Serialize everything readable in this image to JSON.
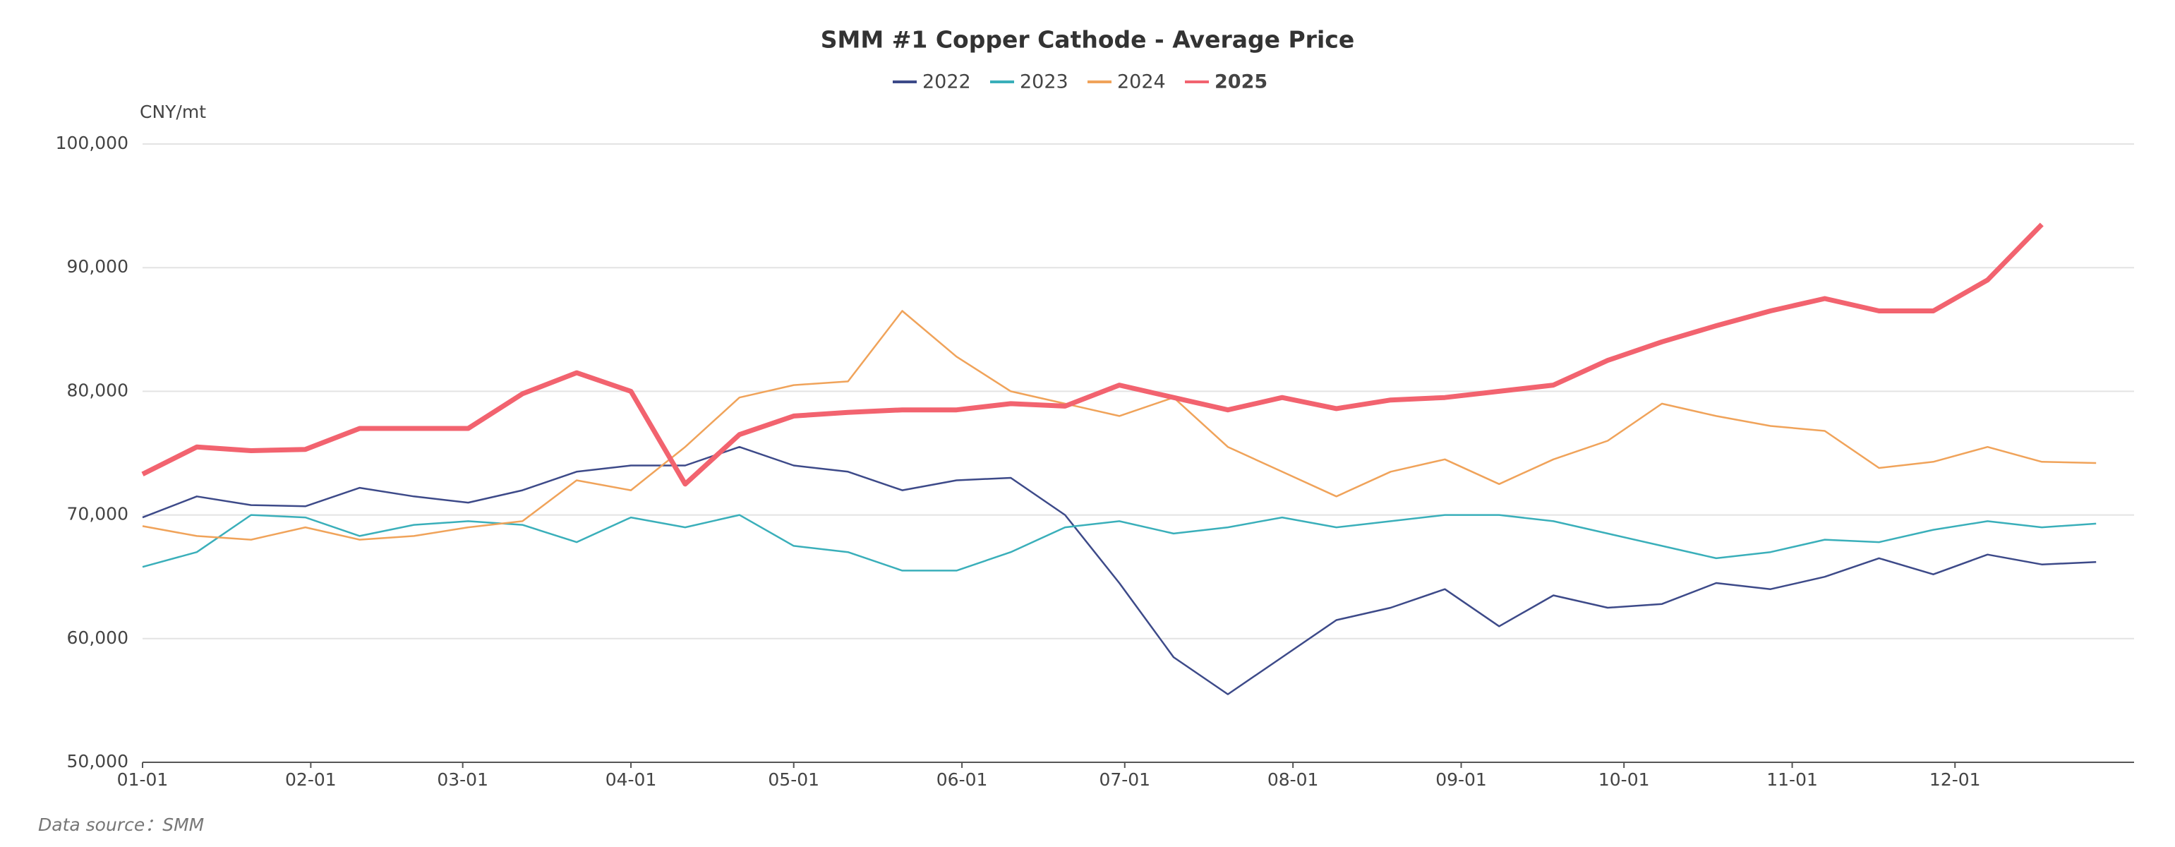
{
  "chart_data": {
    "type": "line",
    "title": "SMM #1 Copper Cathode - Average Price",
    "y_unit": "CNY/mt",
    "source": "Data source：SMM",
    "x": [
      1,
      11,
      21,
      31,
      41,
      51,
      61,
      71,
      81,
      91,
      101,
      111,
      121,
      131,
      141,
      151,
      161,
      171,
      181,
      191,
      201,
      211,
      221,
      231,
      241,
      251,
      261,
      271,
      281,
      291,
      301,
      311,
      321,
      331,
      341,
      351,
      361
    ],
    "xlim": [
      1,
      368
    ],
    "xticks": [
      {
        "value": 1,
        "label": "01-01"
      },
      {
        "value": 32,
        "label": "02-01"
      },
      {
        "value": 60,
        "label": "03-01"
      },
      {
        "value": 91,
        "label": "04-01"
      },
      {
        "value": 121,
        "label": "05-01"
      },
      {
        "value": 152,
        "label": "06-01"
      },
      {
        "value": 182,
        "label": "07-01"
      },
      {
        "value": 213,
        "label": "08-01"
      },
      {
        "value": 244,
        "label": "09-01"
      },
      {
        "value": 274,
        "label": "10-01"
      },
      {
        "value": 305,
        "label": "11-01"
      },
      {
        "value": 335,
        "label": "12-01"
      }
    ],
    "ylim": [
      50000,
      100000
    ],
    "yticks": [
      {
        "value": 50000,
        "label": "50,000"
      },
      {
        "value": 60000,
        "label": "60,000"
      },
      {
        "value": 70000,
        "label": "70,000"
      },
      {
        "value": 80000,
        "label": "80,000"
      },
      {
        "value": 90000,
        "label": "90,000"
      },
      {
        "value": 100000,
        "label": "100,000"
      }
    ],
    "grid": true,
    "series": [
      {
        "name": "2022",
        "color": "#3d4a89",
        "width": 2.5,
        "values": [
          69800,
          71500,
          70800,
          70700,
          72200,
          71500,
          71000,
          72000,
          73500,
          74000,
          74000,
          75500,
          74000,
          73500,
          72000,
          72800,
          73000,
          70000,
          64500,
          58500,
          55500,
          58500,
          61500,
          62500,
          64000,
          61000,
          63500,
          62500,
          62800,
          64500,
          64000,
          65000,
          66500,
          65200,
          66800,
          66000,
          66200
        ]
      },
      {
        "name": "2023",
        "color": "#3aafba",
        "width": 2.5,
        "values": [
          65800,
          67000,
          70000,
          69800,
          68300,
          69200,
          69500,
          69200,
          67800,
          69800,
          69000,
          70000,
          67500,
          67000,
          65500,
          65500,
          67000,
          69000,
          69500,
          68500,
          69000,
          69800,
          69000,
          69500,
          70000,
          70000,
          69500,
          68500,
          67500,
          66500,
          67000,
          68000,
          67800,
          68800,
          69500,
          69000,
          69300
        ]
      },
      {
        "name": "2024",
        "color": "#f0a35a",
        "width": 2.5,
        "values": [
          69100,
          68300,
          68000,
          69000,
          68000,
          68300,
          69000,
          69500,
          72800,
          72000,
          75500,
          79500,
          80500,
          80800,
          86500,
          82800,
          80000,
          79000,
          78000,
          79500,
          75500,
          73500,
          71500,
          73500,
          74500,
          72500,
          74500,
          76000,
          79000,
          78000,
          77200,
          76800,
          73800,
          74300,
          75500,
          74300,
          74200
        ]
      },
      {
        "name": "2025",
        "color": "#f2636f",
        "width": 7,
        "bold": true,
        "values": [
          73300,
          75500,
          75200,
          75300,
          77000,
          77000,
          77000,
          79800,
          81500,
          80000,
          72500,
          76500,
          78000,
          78300,
          78500,
          78500,
          79000,
          78800,
          80500,
          79500,
          78500,
          79500,
          78600,
          79300,
          79500,
          80000,
          80500,
          82500,
          84000,
          85300,
          86500,
          87500,
          86500,
          86500,
          89000,
          93500,
          null
        ]
      }
    ]
  }
}
